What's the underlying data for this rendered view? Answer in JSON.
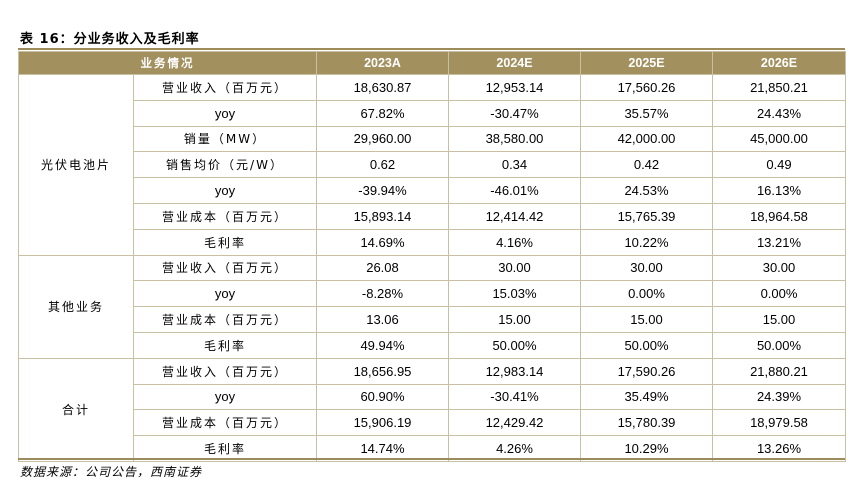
{
  "title": "表 16：分业务收入及毛利率",
  "table": {
    "header": {
      "label": "业务情况",
      "years": [
        "2023A",
        "2024E",
        "2025E",
        "2026E"
      ]
    },
    "groups": [
      {
        "name": "光伏电池片",
        "rows": [
          {
            "metric": "营业收入（百万元）",
            "values": [
              "18,630.87",
              "12,953.14",
              "17,560.26",
              "21,850.21"
            ]
          },
          {
            "metric": "yoy",
            "values": [
              "67.82%",
              "-30.47%",
              "35.57%",
              "24.43%"
            ]
          },
          {
            "metric": "销量（MW）",
            "values": [
              "29,960.00",
              "38,580.00",
              "42,000.00",
              "45,000.00"
            ]
          },
          {
            "metric": "销售均价（元/W）",
            "values": [
              "0.62",
              "0.34",
              "0.42",
              "0.49"
            ]
          },
          {
            "metric": "yoy",
            "values": [
              "-39.94%",
              "-46.01%",
              "24.53%",
              "16.13%"
            ]
          },
          {
            "metric": "营业成本（百万元）",
            "values": [
              "15,893.14",
              "12,414.42",
              "15,765.39",
              "18,964.58"
            ]
          },
          {
            "metric": "毛利率",
            "values": [
              "14.69%",
              "4.16%",
              "10.22%",
              "13.21%"
            ]
          }
        ]
      },
      {
        "name": "其他业务",
        "rows": [
          {
            "metric": "营业收入（百万元）",
            "values": [
              "26.08",
              "30.00",
              "30.00",
              "30.00"
            ]
          },
          {
            "metric": "yoy",
            "values": [
              "-8.28%",
              "15.03%",
              "0.00%",
              "0.00%"
            ]
          },
          {
            "metric": "营业成本（百万元）",
            "values": [
              "13.06",
              "15.00",
              "15.00",
              "15.00"
            ]
          },
          {
            "metric": "毛利率",
            "values": [
              "49.94%",
              "50.00%",
              "50.00%",
              "50.00%"
            ]
          }
        ]
      },
      {
        "name": "合计",
        "rows": [
          {
            "metric": "营业收入（百万元）",
            "values": [
              "18,656.95",
              "12,983.14",
              "17,590.26",
              "21,880.21"
            ]
          },
          {
            "metric": "yoy",
            "values": [
              "60.90%",
              "-30.41%",
              "35.49%",
              "24.39%"
            ]
          },
          {
            "metric": "营业成本（百万元）",
            "values": [
              "15,906.19",
              "12,429.42",
              "15,780.39",
              "18,979.58"
            ]
          },
          {
            "metric": "毛利率",
            "values": [
              "14.74%",
              "4.26%",
              "10.29%",
              "13.26%"
            ]
          }
        ]
      }
    ]
  },
  "source": "数据来源：公司公告，西南证券",
  "colors": {
    "header_bg": "#a3905f",
    "header_text": "#ffffff",
    "rule": "#9e8b5c",
    "border": "#c9bfa3"
  }
}
